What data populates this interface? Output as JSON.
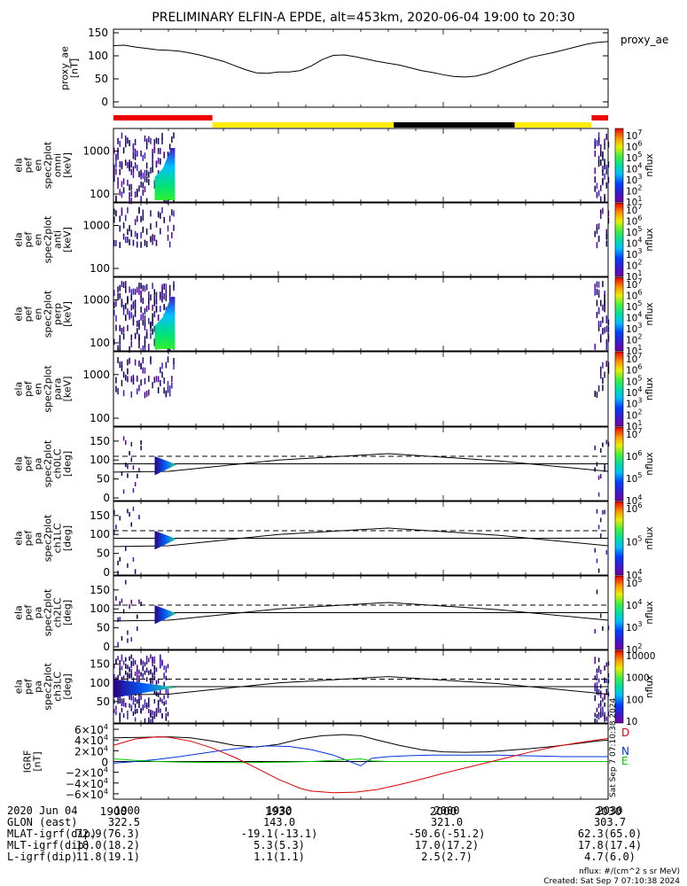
{
  "title": "PRELIMINARY ELFIN-A EPDE, alt=453km, 2020-06-04 19:00 to 20:30",
  "bars": {
    "segments": [
      {
        "from": "19:00",
        "to": "19:18",
        "color": "#ee0000",
        "offset": 0
      },
      {
        "from": "19:18",
        "to": "19:51",
        "color": "#ffee00",
        "offset": 1
      },
      {
        "from": "19:51",
        "to": "20:13",
        "color": "#000000",
        "offset": 1
      },
      {
        "from": "20:13",
        "to": "20:27",
        "color": "#ffee00",
        "offset": 1
      },
      {
        "from": "20:27",
        "to": "20:30",
        "color": "#ee0000",
        "offset": 0
      }
    ]
  },
  "chart_data": [
    {
      "id": "proxy-ae",
      "type": "line",
      "series_label": "proxy_ae",
      "ylabel": [
        "proxy_ae",
        "[nT]"
      ],
      "ylim": [
        0,
        150
      ],
      "yticks": [
        "0",
        "50",
        "100",
        "150"
      ],
      "x_minutes": [
        0,
        2,
        4,
        6,
        8,
        10,
        12,
        14,
        16,
        20,
        24,
        26,
        28,
        30,
        32,
        34,
        36,
        38,
        40,
        42,
        44,
        46,
        48,
        50,
        52,
        54,
        56,
        58,
        60,
        62,
        64,
        66,
        68,
        70,
        72,
        74,
        76,
        80,
        84,
        86,
        88,
        90
      ],
      "values": [
        122,
        123,
        119,
        116,
        113,
        112,
        110,
        106,
        101,
        88,
        70,
        63,
        62,
        65,
        65,
        68,
        78,
        92,
        101,
        102,
        98,
        93,
        88,
        84,
        80,
        74,
        68,
        64,
        59,
        55,
        54,
        56,
        62,
        71,
        80,
        89,
        97,
        107,
        119,
        125,
        129,
        131
      ]
    },
    {
      "id": "en-omni",
      "type": "heatmap",
      "ylabel": [
        "ela",
        "pef",
        "en",
        "spec2plot",
        "omni",
        "[keV]"
      ],
      "yticks": [
        "100",
        "1000"
      ],
      "cbar_unit": "nflux",
      "cbar_ticks": [
        [
          "10",
          "7"
        ],
        [
          "10",
          "6"
        ],
        [
          "10",
          "5"
        ],
        [
          "10",
          "4"
        ],
        [
          "10",
          "3"
        ],
        [
          "10",
          "2"
        ],
        [
          "10",
          "1"
        ]
      ]
    },
    {
      "id": "en-anti",
      "type": "heatmap",
      "ylabel": [
        "ela",
        "pef",
        "en",
        "spec2plot",
        "anti",
        "[keV]"
      ],
      "yticks": [
        "100",
        "1000"
      ],
      "cbar_unit": "nflux",
      "cbar_ticks": [
        [
          "10",
          "7"
        ],
        [
          "10",
          "6"
        ],
        [
          "10",
          "5"
        ],
        [
          "10",
          "4"
        ],
        [
          "10",
          "3"
        ],
        [
          "10",
          "2"
        ],
        [
          "10",
          "1"
        ]
      ]
    },
    {
      "id": "en-perp",
      "type": "heatmap",
      "ylabel": [
        "ela",
        "pef",
        "en",
        "spec2plot",
        "perp",
        "[keV]"
      ],
      "yticks": [
        "100",
        "1000"
      ],
      "cbar_unit": "nflux",
      "cbar_ticks": [
        [
          "10",
          "7"
        ],
        [
          "10",
          "6"
        ],
        [
          "10",
          "5"
        ],
        [
          "10",
          "4"
        ],
        [
          "10",
          "3"
        ],
        [
          "10",
          "2"
        ],
        [
          "10",
          "1"
        ]
      ]
    },
    {
      "id": "en-para",
      "type": "heatmap",
      "ylabel": [
        "ela",
        "pef",
        "en",
        "spec2plot",
        "para",
        "[keV]"
      ],
      "yticks": [
        "100",
        "1000"
      ],
      "cbar_unit": "nflux",
      "cbar_ticks": [
        [
          "10",
          "7"
        ],
        [
          "10",
          "6"
        ],
        [
          "10",
          "5"
        ],
        [
          "10",
          "4"
        ],
        [
          "10",
          "3"
        ],
        [
          "10",
          "2"
        ],
        [
          "10",
          "1"
        ]
      ]
    },
    {
      "id": "ch0LC",
      "type": "heatmap",
      "ylabel": [
        "ela",
        "pef",
        "pa",
        "spec2plot",
        "ch0LC",
        "[deg]"
      ],
      "yticks": [
        "0",
        "50",
        "100",
        "150"
      ],
      "ylim": [
        0,
        180
      ],
      "cbar_unit": "nflux",
      "cbar_ticks": [
        [
          "10",
          "7"
        ],
        [
          "10",
          "6"
        ],
        [
          "10",
          "5"
        ],
        [
          "10",
          "4"
        ]
      ]
    },
    {
      "id": "ch1LC",
      "type": "heatmap",
      "ylabel": [
        "ela",
        "pef",
        "pa",
        "spec2plot",
        "ch1LC",
        "[deg]"
      ],
      "yticks": [
        "0",
        "50",
        "100",
        "150"
      ],
      "ylim": [
        0,
        180
      ],
      "cbar_unit": "nflux",
      "cbar_ticks": [
        [
          "10",
          "6"
        ],
        [
          "10",
          "5"
        ],
        [
          "10",
          "4"
        ]
      ]
    },
    {
      "id": "ch2LC",
      "type": "heatmap",
      "ylabel": [
        "ela",
        "pef",
        "pa",
        "spec2plot",
        "ch2LC",
        "[deg]"
      ],
      "yticks": [
        "0",
        "50",
        "100",
        "150"
      ],
      "ylim": [
        0,
        180
      ],
      "cbar_unit": "nflux",
      "cbar_ticks": [
        [
          "10",
          "5"
        ],
        [
          "10",
          "4"
        ],
        [
          "10",
          "3"
        ],
        [
          "10",
          "2"
        ]
      ]
    },
    {
      "id": "ch3LC",
      "type": "heatmap",
      "ylabel": [
        "ela",
        "pef",
        "pa",
        "spec2plot",
        "ch3LC",
        "[deg]"
      ],
      "yticks": [
        "50",
        "100",
        "150"
      ],
      "ylim": [
        0,
        180
      ],
      "cbar_unit": "nflux",
      "cbar_ticks_plain": [
        "10000",
        "1000",
        "100",
        "10"
      ]
    },
    {
      "id": "bgrf",
      "type": "line",
      "ylabel": [
        "IGRF",
        "[nT]"
      ],
      "ylim": [
        -70000,
        70000
      ],
      "yticks": [
        [
          "6×10",
          "4"
        ],
        [
          "4×10",
          "4"
        ],
        [
          "2×10",
          "4"
        ],
        [
          "0",
          ""
        ],
        [
          "−2×10",
          "4"
        ],
        [
          "−4×10",
          "4"
        ],
        [
          "−6×10",
          "4"
        ]
      ],
      "xticks": [
        "1900",
        "1930",
        "2000",
        "2030"
      ],
      "legend": [
        {
          "name": "D",
          "color": "#dd0000"
        },
        {
          "name": "N",
          "color": "#0033dd"
        },
        {
          "name": "E",
          "color": "#00cc00"
        }
      ],
      "series": [
        {
          "name": "black",
          "color": "#000000",
          "x": [
            0,
            6,
            10,
            14,
            18,
            22,
            26,
            30,
            34,
            38,
            42,
            45,
            48,
            52,
            56,
            60,
            64,
            68,
            72,
            76,
            80,
            84,
            88,
            90
          ],
          "values": [
            44000,
            45000,
            46000,
            44000,
            38000,
            30000,
            27000,
            32000,
            42000,
            48000,
            50000,
            48000,
            40000,
            30000,
            22000,
            18000,
            17000,
            18000,
            21000,
            24000,
            28000,
            33000,
            38000,
            40000
          ]
        },
        {
          "name": "N",
          "color": "#0033dd",
          "x": [
            0,
            4,
            8,
            12,
            16,
            20,
            24,
            28,
            32,
            36,
            40,
            45,
            47,
            50,
            54,
            58,
            62,
            66,
            70,
            74,
            78,
            82,
            86,
            90
          ],
          "values": [
            -3000,
            0,
            4000,
            9000,
            15000,
            21000,
            26000,
            29000,
            28000,
            22000,
            12000,
            -8000,
            6000,
            9000,
            11000,
            12000,
            12000,
            12000,
            12000,
            11000,
            10000,
            9000,
            9000,
            9000
          ]
        },
        {
          "name": "E",
          "color": "#00cc00",
          "x": [
            0,
            4,
            8,
            12,
            16,
            20,
            24,
            28,
            32,
            36,
            40,
            45,
            47,
            50,
            54,
            58,
            62,
            66,
            70,
            74,
            78,
            82,
            86,
            90
          ],
          "values": [
            5000,
            2000,
            0,
            -1000,
            -1500,
            -2000,
            -2000,
            -1500,
            -1000,
            0,
            2000,
            5000,
            1000,
            0,
            0,
            0,
            0,
            0,
            0,
            0,
            0,
            0,
            0,
            0
          ]
        },
        {
          "name": "D",
          "color": "#dd0000",
          "x": [
            0,
            4,
            8,
            10,
            14,
            18,
            22,
            26,
            30,
            34,
            36,
            40,
            44,
            48,
            52,
            56,
            60,
            64,
            68,
            72,
            76,
            80,
            84,
            88,
            90
          ],
          "values": [
            30000,
            42000,
            46000,
            45000,
            38000,
            25000,
            8000,
            -12000,
            -33000,
            -50000,
            -55000,
            -58000,
            -57000,
            -52000,
            -43000,
            -33000,
            -22000,
            -12000,
            -2000,
            8000,
            18000,
            27000,
            34000,
            40000,
            43000
          ]
        }
      ]
    }
  ],
  "footer": {
    "labels": [
      "2020 Jun 04",
      "GLON (east)",
      "MLAT-igrf(dip)",
      "MLT-igrf(dip)",
      "L-igrf(dip)"
    ],
    "cols": [
      [
        "1900",
        "322.5",
        "72.9(76.3)",
        "18.0(18.2)",
        "11.8(19.1)"
      ],
      [
        "1930",
        "143.0",
        "-19.1(-13.1)",
        "5.3(5.3)",
        "1.1(1.1)"
      ],
      [
        "2000",
        "321.0",
        "-50.6(-51.2)",
        "17.0(17.2)",
        "2.5(2.7)"
      ],
      [
        "2030",
        "303.7",
        "62.3(65.0)",
        "17.8(17.4)",
        "4.7(6.0)"
      ]
    ],
    "units": "nflux: #/(cm^2 s sr MeV)",
    "created": "Created: Sat Sep  7 07:10:38 2024",
    "side_stamp": "Sat Sep  7 07:10:38 2024"
  }
}
